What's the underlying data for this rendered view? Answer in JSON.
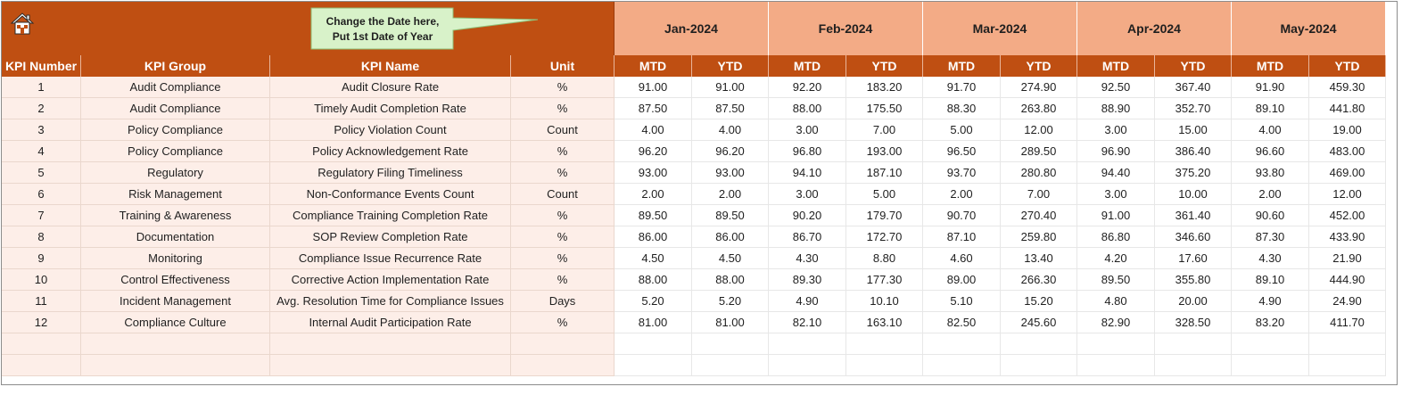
{
  "callout": {
    "line1": "Change the Date here,",
    "line2": "Put 1st Date of Year"
  },
  "months": [
    "Jan-2024",
    "Feb-2024",
    "Mar-2024",
    "Apr-2024",
    "May-2024"
  ],
  "headers": {
    "kpi_number": "KPI Number",
    "kpi_group": "KPI Group",
    "kpi_name": "KPI Name",
    "unit": "Unit",
    "mtd": "MTD",
    "ytd": "YTD"
  },
  "rows": [
    {
      "num": "1",
      "group": "Audit Compliance",
      "name": "Audit Closure Rate",
      "unit": "%",
      "values": [
        "91.00",
        "91.00",
        "92.20",
        "183.20",
        "91.70",
        "274.90",
        "92.50",
        "367.40",
        "91.90",
        "459.30"
      ]
    },
    {
      "num": "2",
      "group": "Audit Compliance",
      "name": "Timely Audit Completion Rate",
      "unit": "%",
      "values": [
        "87.50",
        "87.50",
        "88.00",
        "175.50",
        "88.30",
        "263.80",
        "88.90",
        "352.70",
        "89.10",
        "441.80"
      ]
    },
    {
      "num": "3",
      "group": "Policy Compliance",
      "name": "Policy Violation Count",
      "unit": "Count",
      "values": [
        "4.00",
        "4.00",
        "3.00",
        "7.00",
        "5.00",
        "12.00",
        "3.00",
        "15.00",
        "4.00",
        "19.00"
      ]
    },
    {
      "num": "4",
      "group": "Policy Compliance",
      "name": "Policy Acknowledgement Rate",
      "unit": "%",
      "values": [
        "96.20",
        "96.20",
        "96.80",
        "193.00",
        "96.50",
        "289.50",
        "96.90",
        "386.40",
        "96.60",
        "483.00"
      ]
    },
    {
      "num": "5",
      "group": "Regulatory",
      "name": "Regulatory Filing Timeliness",
      "unit": "%",
      "values": [
        "93.00",
        "93.00",
        "94.10",
        "187.10",
        "93.70",
        "280.80",
        "94.40",
        "375.20",
        "93.80",
        "469.00"
      ]
    },
    {
      "num": "6",
      "group": "Risk Management",
      "name": "Non-Conformance Events Count",
      "unit": "Count",
      "values": [
        "2.00",
        "2.00",
        "3.00",
        "5.00",
        "2.00",
        "7.00",
        "3.00",
        "10.00",
        "2.00",
        "12.00"
      ]
    },
    {
      "num": "7",
      "group": "Training & Awareness",
      "name": "Compliance Training Completion Rate",
      "unit": "%",
      "values": [
        "89.50",
        "89.50",
        "90.20",
        "179.70",
        "90.70",
        "270.40",
        "91.00",
        "361.40",
        "90.60",
        "452.00"
      ]
    },
    {
      "num": "8",
      "group": "Documentation",
      "name": "SOP Review Completion Rate",
      "unit": "%",
      "values": [
        "86.00",
        "86.00",
        "86.70",
        "172.70",
        "87.10",
        "259.80",
        "86.80",
        "346.60",
        "87.30",
        "433.90"
      ]
    },
    {
      "num": "9",
      "group": "Monitoring",
      "name": "Compliance Issue Recurrence Rate",
      "unit": "%",
      "values": [
        "4.50",
        "4.50",
        "4.30",
        "8.80",
        "4.60",
        "13.40",
        "4.20",
        "17.60",
        "4.30",
        "21.90"
      ]
    },
    {
      "num": "10",
      "group": "Control Effectiveness",
      "name": "Corrective Action Implementation Rate",
      "unit": "%",
      "values": [
        "88.00",
        "88.00",
        "89.30",
        "177.30",
        "89.00",
        "266.30",
        "89.50",
        "355.80",
        "89.10",
        "444.90"
      ]
    },
    {
      "num": "11",
      "group": "Incident Management",
      "name": "Avg. Resolution Time for Compliance Issues",
      "unit": "Days",
      "values": [
        "5.20",
        "5.20",
        "4.90",
        "10.10",
        "5.10",
        "15.20",
        "4.80",
        "20.00",
        "4.90",
        "24.90"
      ]
    },
    {
      "num": "12",
      "group": "Compliance Culture",
      "name": "Internal Audit Participation Rate",
      "unit": "%",
      "values": [
        "81.00",
        "81.00",
        "82.10",
        "163.10",
        "82.50",
        "245.60",
        "82.90",
        "328.50",
        "83.20",
        "411.70"
      ]
    },
    {
      "num": "",
      "group": "",
      "name": "",
      "unit": "",
      "values": [
        "",
        "",
        "",
        "",
        "",
        "",
        "",
        "",
        "",
        ""
      ]
    },
    {
      "num": "",
      "group": "",
      "name": "",
      "unit": "",
      "values": [
        "",
        "",
        "",
        "",
        "",
        "",
        "",
        "",
        "",
        ""
      ]
    }
  ],
  "icons": {
    "home": "home-icon"
  },
  "colors": {
    "header_dark": "#bf4f12",
    "header_light": "#f3ab86",
    "info_fill": "#fdeee8",
    "callout_fill": "#d8f2c9"
  }
}
